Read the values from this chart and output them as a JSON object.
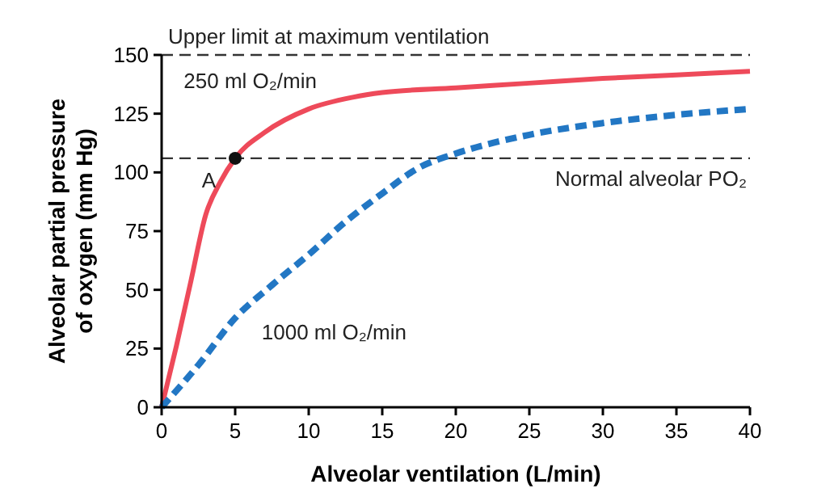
{
  "chart_data": {
    "type": "line",
    "xlabel": "Alveolar ventilation (L/min)",
    "ylabel": "Alveolar partial pressure of oxygen (mm Hg)",
    "xlim": [
      0,
      40
    ],
    "ylim": [
      0,
      150
    ],
    "xticks": [
      0,
      5,
      10,
      15,
      20,
      25,
      30,
      35,
      40
    ],
    "yticks": [
      0,
      25,
      50,
      75,
      100,
      125,
      150
    ],
    "grid": false,
    "series": [
      {
        "name": "250 ml O₂/min",
        "color": "#ee4a5a",
        "line_style": "solid",
        "marker": "none",
        "x": [
          0,
          1,
          2,
          3,
          4,
          5,
          7,
          10,
          13,
          15,
          20,
          25,
          30,
          35,
          40
        ],
        "values": [
          0,
          26,
          54,
          82,
          96,
          106,
          117,
          127,
          132,
          134,
          136,
          138,
          140,
          141.5,
          143
        ]
      },
      {
        "name": "1000 ml O₂/min",
        "color": "#2277c4",
        "line_style": "dashed",
        "marker": "none",
        "x": [
          0,
          2.5,
          5,
          7.5,
          10,
          12.5,
          15,
          17.5,
          20,
          25,
          30,
          35,
          40
        ],
        "values": [
          0,
          18,
          38,
          52,
          65,
          79,
          91,
          102,
          108,
          116,
          121,
          124.5,
          127
        ]
      },
      {
        "type": "scatter",
        "color": "#111111",
        "marker": "circle",
        "x": [
          5
        ],
        "values": [
          106
        ]
      }
    ],
    "ref_lines": [
      {
        "axis": "y",
        "value": 150,
        "label": "Upper limit at maximum ventilation",
        "color": "#333333",
        "line_style": "dashed"
      },
      {
        "axis": "y",
        "value": 106,
        "label": "Normal alveolar PO₂",
        "color": "#333333",
        "line_style": "dashed"
      }
    ],
    "annotations": [
      {
        "text": "A",
        "x": 5,
        "y": 106
      }
    ]
  }
}
